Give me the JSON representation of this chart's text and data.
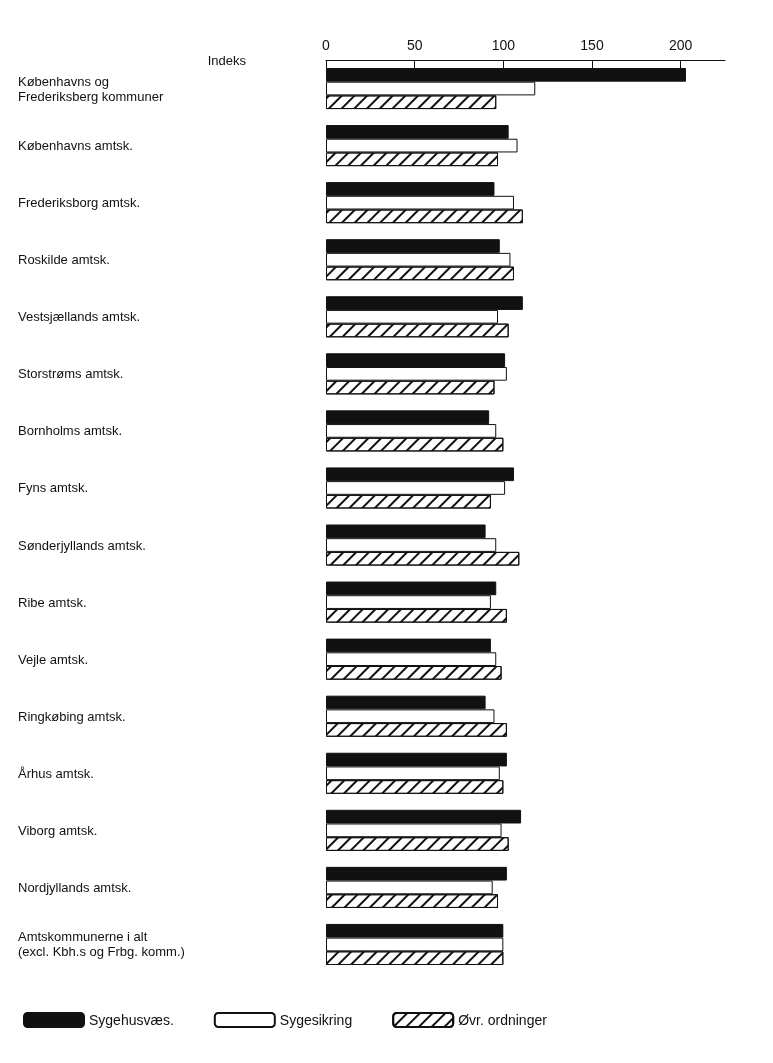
{
  "chart_data": {
    "type": "bar",
    "orientation": "horizontal",
    "x2label": "Indeks",
    "categories": [
      "Københavns og\nFrederiksberg kommuner",
      "Københavns amtsk.",
      "Frederiksborg amtsk.",
      "Roskilde amtsk.",
      "Vestsjællands amtsk.",
      "Storstrøms amtsk.",
      "Bornholms amtsk.",
      "Fyns amtsk.",
      "Sønderjyllands amtsk.",
      "Ribe amtsk.",
      "Vejle amtsk.",
      "Ringkøbing amtsk.",
      "Århus amtsk.",
      "Viborg amtsk.",
      "Nordjyllands amtsk.",
      "Amtskommunerne i alt\n(excl. Kbh.s og Frbg. komm.)"
    ],
    "series": [
      {
        "name": "Sygehusvæs.",
        "color": "#111111",
        "axis": "x2",
        "values": [
          203,
          103,
          95,
          98,
          111,
          101,
          92,
          106,
          90,
          96,
          93,
          90,
          102,
          110,
          102,
          100
        ]
      },
      {
        "name": "Sygesikring",
        "color": "#ffffff",
        "axis": "x2",
        "values": [
          118,
          108,
          106,
          104,
          97,
          102,
          96,
          101,
          96,
          93,
          96,
          95,
          98,
          99,
          94,
          100
        ]
      },
      {
        "name": "Øvr. ordninger",
        "color": "#fefefe",
        "axis": "x2",
        "values": [
          96,
          97,
          111,
          106,
          103,
          95,
          100,
          93,
          109,
          102,
          99,
          102,
          100,
          103,
          97,
          100
        ]
      }
    ],
    "x2lim": [
      0,
      225
    ],
    "x2ticks": [
      0,
      50,
      100,
      150,
      200
    ],
    "grid": false,
    "legend": "bottom"
  }
}
